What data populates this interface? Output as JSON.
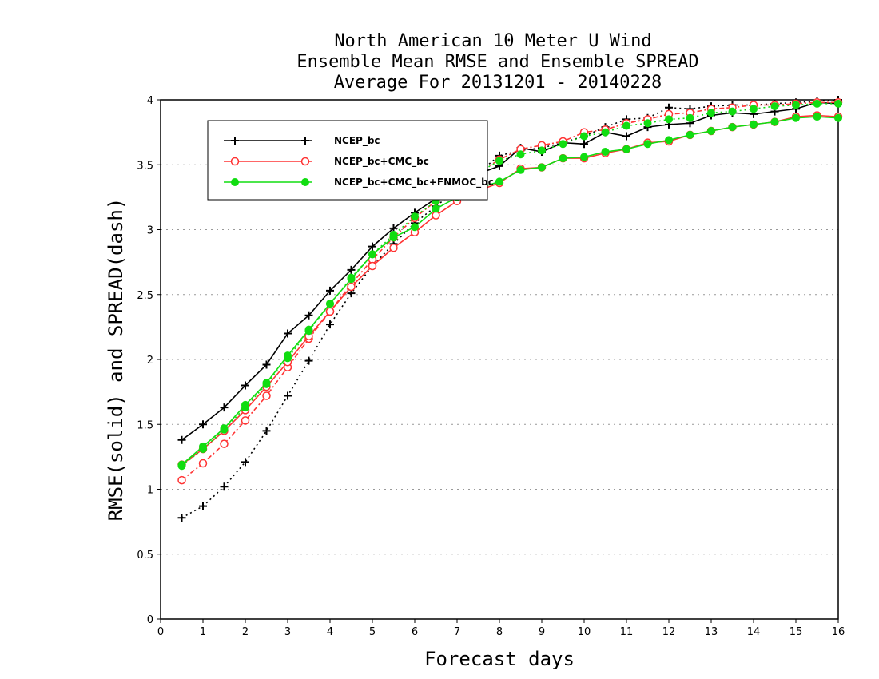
{
  "chart_data": {
    "type": "line",
    "title_lines": [
      "North American 10 Meter U Wind",
      "Ensemble Mean RMSE and Ensemble SPREAD",
      "Average For 20131201 - 20140228"
    ],
    "xlabel": "Forecast days",
    "ylabel": "RMSE(solid) and SPREAD(dash)",
    "xlim": [
      0,
      16
    ],
    "ylim": [
      0,
      4
    ],
    "x_ticks": [
      "0",
      "1",
      "2",
      "3",
      "4",
      "5",
      "6",
      "7",
      "8",
      "9",
      "10",
      "11",
      "12",
      "13",
      "14",
      "15",
      "16"
    ],
    "y_ticks": [
      "0",
      "0.5",
      "1",
      "1.5",
      "2",
      "2.5",
      "3",
      "3.5",
      "4"
    ],
    "grid": "horizontal dotted",
    "legend_position": "upper-left",
    "x": [
      0.5,
      1,
      1.5,
      2,
      2.5,
      3,
      3.5,
      4,
      4.5,
      5,
      5.5,
      6,
      6.5,
      7,
      7.5,
      8,
      8.5,
      9,
      9.5,
      10,
      10.5,
      11,
      11.5,
      12,
      12.5,
      13,
      13.5,
      14,
      14.5,
      15,
      15.5,
      16
    ],
    "series": [
      {
        "name": "NCEP_bc",
        "color": "#000000",
        "marker": "plus",
        "rmse": [
          1.38,
          1.5,
          1.63,
          1.8,
          1.96,
          2.2,
          2.34,
          2.53,
          2.69,
          2.87,
          3.01,
          3.13,
          3.24,
          3.34,
          3.43,
          3.49,
          3.63,
          3.6,
          3.67,
          3.66,
          3.75,
          3.72,
          3.79,
          3.81,
          3.82,
          3.88,
          3.9,
          3.89,
          3.91,
          3.93,
          3.98,
          3.97
        ],
        "spread": [
          0.78,
          0.87,
          1.02,
          1.21,
          1.45,
          1.72,
          1.99,
          2.27,
          2.51,
          2.72,
          2.89,
          3.05,
          3.18,
          3.31,
          3.44,
          3.57,
          3.61,
          3.63,
          3.67,
          3.72,
          3.79,
          3.85,
          3.86,
          3.94,
          3.93,
          3.95,
          3.96,
          3.96,
          3.97,
          3.98,
          3.99,
          4.0
        ]
      },
      {
        "name": "NCEP_bc+CMC_bc",
        "color": "#ff3333",
        "marker": "open-circle",
        "rmse": [
          1.19,
          1.31,
          1.45,
          1.61,
          1.79,
          1.98,
          2.18,
          2.37,
          2.56,
          2.72,
          2.86,
          2.98,
          3.11,
          3.22,
          3.3,
          3.36,
          3.47,
          3.48,
          3.55,
          3.55,
          3.59,
          3.62,
          3.67,
          3.68,
          3.73,
          3.76,
          3.79,
          3.81,
          3.83,
          3.87,
          3.88,
          3.87
        ],
        "spread": [
          1.07,
          1.2,
          1.35,
          1.53,
          1.72,
          1.94,
          2.16,
          2.37,
          2.58,
          2.77,
          2.94,
          3.09,
          3.22,
          3.33,
          3.44,
          3.54,
          3.62,
          3.65,
          3.68,
          3.75,
          3.77,
          3.82,
          3.85,
          3.89,
          3.9,
          3.93,
          3.94,
          3.96,
          3.96,
          3.97,
          3.98,
          3.98
        ]
      },
      {
        "name": "NCEP_bc+CMC_bc+FNMOC_bc",
        "color": "#11dd11",
        "marker": "filled-circle",
        "rmse": [
          1.19,
          1.33,
          1.47,
          1.65,
          1.82,
          2.03,
          2.23,
          2.43,
          2.62,
          2.81,
          2.94,
          3.02,
          3.16,
          3.25,
          3.32,
          3.37,
          3.46,
          3.48,
          3.55,
          3.56,
          3.6,
          3.62,
          3.66,
          3.69,
          3.73,
          3.76,
          3.79,
          3.81,
          3.83,
          3.86,
          3.87,
          3.86
        ],
        "spread": [
          1.18,
          1.31,
          1.46,
          1.63,
          1.81,
          2.01,
          2.22,
          2.43,
          2.63,
          2.81,
          2.96,
          3.1,
          3.22,
          3.34,
          3.44,
          3.53,
          3.58,
          3.61,
          3.66,
          3.72,
          3.75,
          3.8,
          3.82,
          3.85,
          3.86,
          3.9,
          3.91,
          3.93,
          3.95,
          3.96,
          3.97,
          3.97
        ]
      }
    ]
  }
}
